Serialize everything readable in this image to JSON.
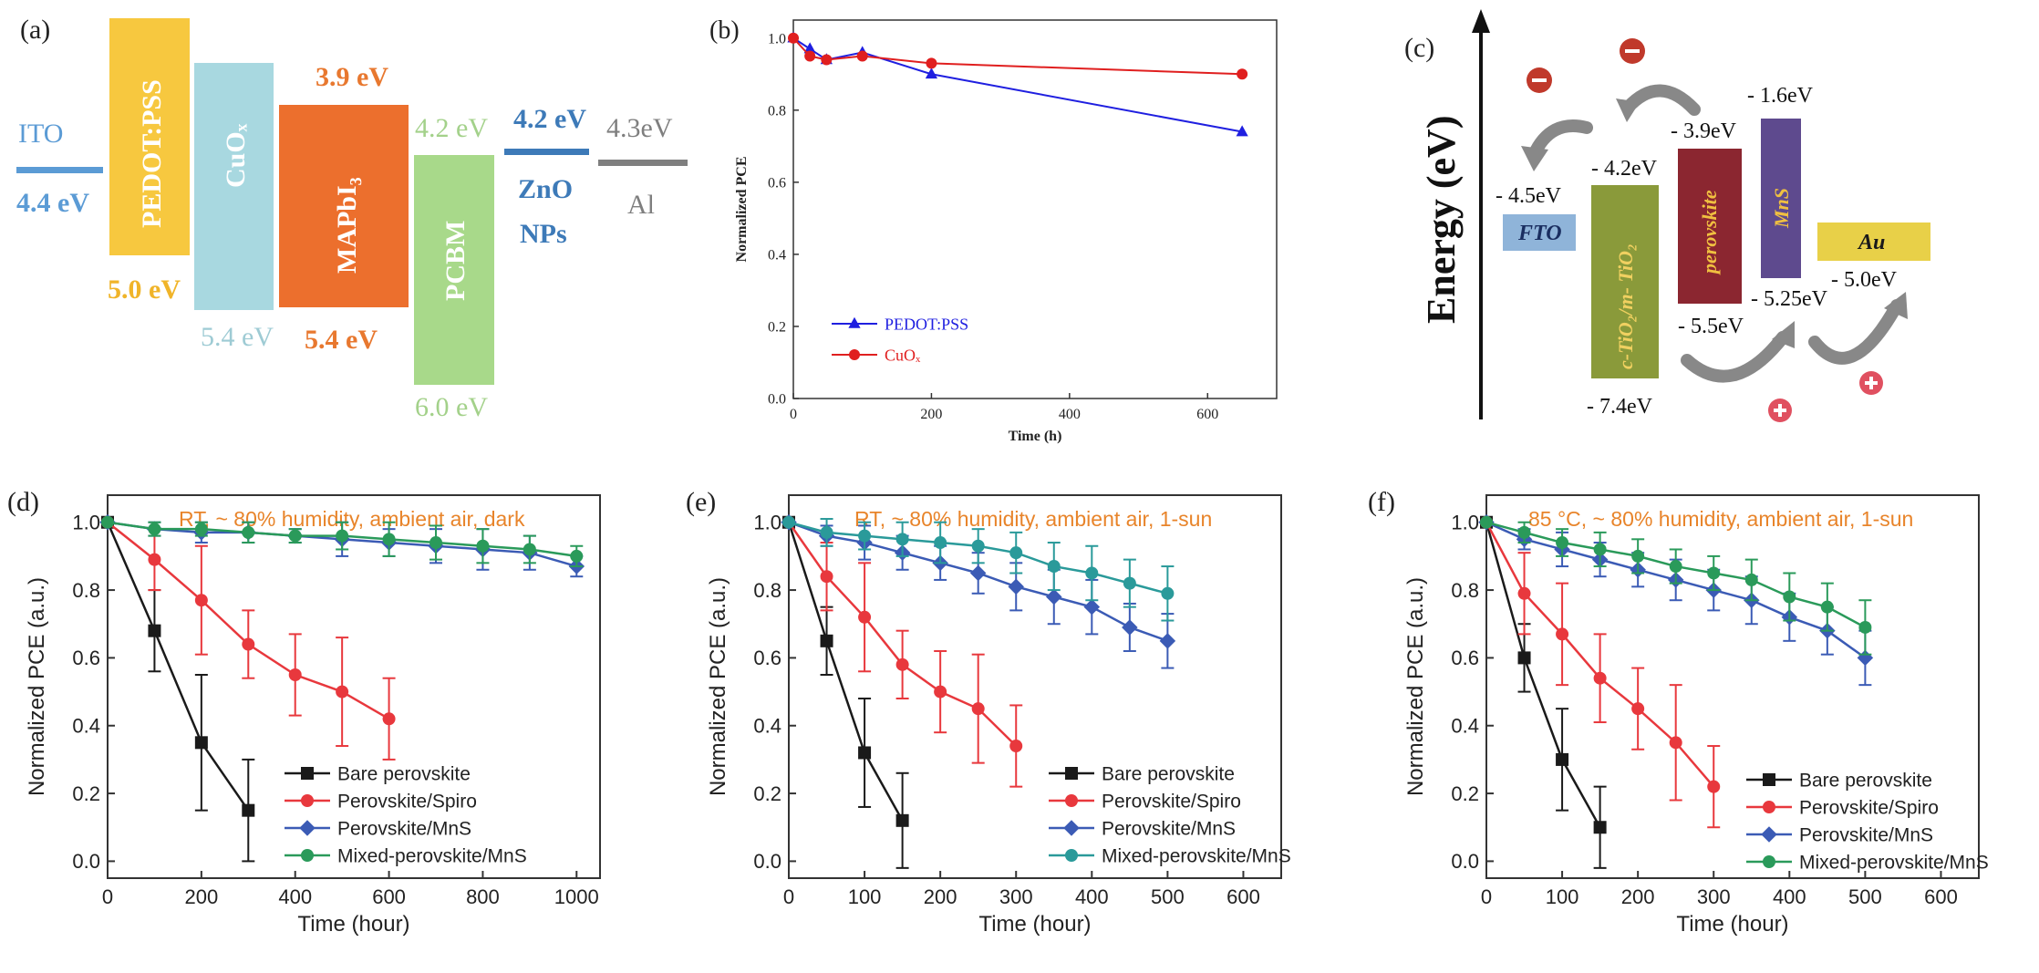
{
  "panel_a": {
    "label": "(a)",
    "layers": [
      {
        "name": "ITO",
        "upper": "",
        "lower": "4.4 eV",
        "color": "#5b9bd5",
        "label_color": "#5b9bd5"
      },
      {
        "name": "PEDOT:PSS",
        "upper": "",
        "lower": "5.0 eV",
        "color": "#f7c83f",
        "label_color": "#f0b429"
      },
      {
        "name": "CuOₓ",
        "upper": "",
        "lower": "5.4 eV",
        "color": "#a8d8e0",
        "label_color": "#9ecbd4"
      },
      {
        "name": "MAPbI₃",
        "upper": "3.9 eV",
        "lower": "5.4 eV",
        "color": "#ec6f2d",
        "label_color": "#e8782f"
      },
      {
        "name": "PCBM",
        "upper": "4.2 eV",
        "lower": "6.0 eV",
        "color": "#a8d98a",
        "label_color": "#a3d18a"
      },
      {
        "name": "ZnO NPs",
        "upper": "4.2 eV",
        "lower": "",
        "color": "#3d7ab8",
        "label_color": "#3d7ab8"
      },
      {
        "name": "Al",
        "upper": "4.3eV",
        "lower": "",
        "color": "#7f7f7f",
        "label_color": "#7f7f7f"
      }
    ]
  },
  "chart_data": [
    {
      "panel": "(b)",
      "type": "line",
      "xlabel": "Time (h)",
      "ylabel": "Normalized PCE",
      "xlim": [
        0,
        700
      ],
      "ylim": [
        0,
        1.05
      ],
      "xticks": [
        "0",
        "200",
        "400",
        "600"
      ],
      "yticks": [
        "0.0",
        "0.2",
        "0.4",
        "0.6",
        "0.8",
        "1.0"
      ],
      "legend_position": "bottom-left",
      "series": [
        {
          "name": "PEDOT:PSS",
          "color": "#1f1fe0",
          "marker": "triangle",
          "x": [
            0,
            24,
            48,
            100,
            200,
            650
          ],
          "y": [
            1.0,
            0.97,
            0.94,
            0.96,
            0.9,
            0.74
          ]
        },
        {
          "name": "CuOₓ",
          "color": "#e01f1f",
          "marker": "circle",
          "x": [
            0,
            24,
            48,
            100,
            200,
            650
          ],
          "y": [
            1.0,
            0.95,
            0.94,
            0.95,
            0.93,
            0.9
          ]
        }
      ]
    },
    {
      "panel": "(d)",
      "type": "line",
      "annotation": "RT, ~ 80% humidity, ambient air, dark",
      "xlabel": "Time (hour)",
      "ylabel": "Normalized PCE (a.u.)",
      "xlim": [
        0,
        1050
      ],
      "ylim": [
        -0.05,
        1.08
      ],
      "xticks": [
        "0",
        "200",
        "400",
        "600",
        "800",
        "1000"
      ],
      "yticks": [
        "0.0",
        "0.2",
        "0.4",
        "0.6",
        "0.8",
        "1.0"
      ],
      "legend_position": "bottom-right",
      "series": [
        {
          "name": "Bare perovskite",
          "color": "#1a1a1a",
          "marker": "square",
          "x": [
            0,
            100,
            200,
            300
          ],
          "y": [
            1.0,
            0.68,
            0.35,
            0.15
          ],
          "err": [
            0,
            0.12,
            0.2,
            0.15
          ]
        },
        {
          "name": "Perovskite/Spiro",
          "color": "#e8383d",
          "marker": "circle",
          "x": [
            0,
            100,
            200,
            300,
            400,
            500,
            600
          ],
          "y": [
            1.0,
            0.89,
            0.77,
            0.64,
            0.55,
            0.5,
            0.42
          ],
          "err": [
            0,
            0.09,
            0.16,
            0.1,
            0.12,
            0.16,
            0.12
          ]
        },
        {
          "name": "Perovskite/MnS",
          "color": "#3b5bb5",
          "marker": "diamond",
          "x": [
            0,
            100,
            200,
            300,
            400,
            500,
            600,
            700,
            800,
            900,
            1000
          ],
          "y": [
            1.0,
            0.98,
            0.97,
            0.97,
            0.96,
            0.95,
            0.94,
            0.93,
            0.92,
            0.91,
            0.87
          ],
          "err": [
            0,
            0.02,
            0.03,
            0.03,
            0.02,
            0.05,
            0.04,
            0.05,
            0.06,
            0.05,
            0.03
          ]
        },
        {
          "name": "Mixed-perovskite/MnS",
          "color": "#2a9a5a",
          "marker": "circle",
          "x": [
            0,
            100,
            200,
            300,
            400,
            500,
            600,
            700,
            800,
            900,
            1000
          ],
          "y": [
            1.0,
            0.98,
            0.98,
            0.97,
            0.96,
            0.96,
            0.95,
            0.94,
            0.93,
            0.92,
            0.9
          ],
          "err": [
            0,
            0.02,
            0.02,
            0.03,
            0.02,
            0.04,
            0.05,
            0.05,
            0.05,
            0.04,
            0.03
          ]
        }
      ]
    },
    {
      "panel": "(e)",
      "type": "line",
      "annotation": "RT, ~ 80% humidity, ambient air, 1-sun",
      "xlabel": "Time (hour)",
      "ylabel": "Normalized PCE (a.u.)",
      "xlim": [
        0,
        650
      ],
      "ylim": [
        -0.05,
        1.08
      ],
      "xticks": [
        "0",
        "100",
        "200",
        "300",
        "400",
        "500",
        "600"
      ],
      "yticks": [
        "0.0",
        "0.2",
        "0.4",
        "0.6",
        "0.8",
        "1.0"
      ],
      "legend_position": "bottom-right",
      "series": [
        {
          "name": "Bare perovskite",
          "color": "#1a1a1a",
          "marker": "square",
          "x": [
            0,
            50,
            100,
            150
          ],
          "y": [
            1.0,
            0.65,
            0.32,
            0.12
          ],
          "err": [
            0,
            0.1,
            0.16,
            0.14
          ]
        },
        {
          "name": "Perovskite/Spiro",
          "color": "#e8383d",
          "marker": "circle",
          "x": [
            0,
            50,
            100,
            150,
            200,
            250,
            300
          ],
          "y": [
            1.0,
            0.84,
            0.72,
            0.58,
            0.5,
            0.45,
            0.34
          ],
          "err": [
            0,
            0.1,
            0.16,
            0.1,
            0.12,
            0.16,
            0.12
          ]
        },
        {
          "name": "Perovskite/MnS",
          "color": "#3b5bb5",
          "marker": "diamond",
          "x": [
            0,
            50,
            100,
            150,
            200,
            250,
            300,
            350,
            400,
            450,
            500
          ],
          "y": [
            1.0,
            0.96,
            0.94,
            0.91,
            0.88,
            0.85,
            0.81,
            0.78,
            0.75,
            0.69,
            0.65
          ],
          "err": [
            0,
            0.03,
            0.05,
            0.05,
            0.05,
            0.06,
            0.07,
            0.08,
            0.08,
            0.07,
            0.08
          ]
        },
        {
          "name": "Mixed-perovskite/MnS",
          "color": "#2a9a9a",
          "marker": "circle",
          "x": [
            0,
            50,
            100,
            150,
            200,
            250,
            300,
            350,
            400,
            450,
            500
          ],
          "y": [
            1.0,
            0.97,
            0.96,
            0.95,
            0.94,
            0.93,
            0.91,
            0.87,
            0.85,
            0.82,
            0.79
          ],
          "err": [
            0,
            0.04,
            0.04,
            0.05,
            0.06,
            0.05,
            0.06,
            0.07,
            0.08,
            0.07,
            0.08
          ]
        }
      ]
    },
    {
      "panel": "(f)",
      "type": "line",
      "annotation": "85 °C, ~ 80% humidity, ambient air, 1-sun",
      "xlabel": "Time (hour)",
      "ylabel": "Normalized PCE (a.u.)",
      "xlim": [
        0,
        650
      ],
      "ylim": [
        -0.05,
        1.08
      ],
      "xticks": [
        "0",
        "100",
        "200",
        "300",
        "400",
        "500",
        "600"
      ],
      "yticks": [
        "0.0",
        "0.2",
        "0.4",
        "0.6",
        "0.8",
        "1.0"
      ],
      "legend_position": "bottom-right",
      "series": [
        {
          "name": "Bare perovskite",
          "color": "#1a1a1a",
          "marker": "square",
          "x": [
            0,
            50,
            100,
            150
          ],
          "y": [
            1.0,
            0.6,
            0.3,
            0.1
          ],
          "err": [
            0,
            0.1,
            0.15,
            0.12
          ]
        },
        {
          "name": "Perovskite/Spiro",
          "color": "#e8383d",
          "marker": "circle",
          "x": [
            0,
            50,
            100,
            150,
            200,
            250,
            300
          ],
          "y": [
            1.0,
            0.79,
            0.67,
            0.54,
            0.45,
            0.35,
            0.22
          ],
          "err": [
            0,
            0.12,
            0.15,
            0.13,
            0.12,
            0.17,
            0.12
          ]
        },
        {
          "name": "Perovskite/MnS",
          "color": "#3b5bb5",
          "marker": "diamond",
          "x": [
            0,
            50,
            100,
            150,
            200,
            250,
            300,
            350,
            400,
            450,
            500
          ],
          "y": [
            1.0,
            0.95,
            0.92,
            0.89,
            0.86,
            0.83,
            0.8,
            0.77,
            0.72,
            0.68,
            0.6
          ],
          "err": [
            0,
            0.03,
            0.05,
            0.05,
            0.05,
            0.06,
            0.06,
            0.07,
            0.07,
            0.07,
            0.08
          ]
        },
        {
          "name": "Mixed-perovskite/MnS",
          "color": "#2a9a5a",
          "marker": "circle",
          "x": [
            0,
            50,
            100,
            150,
            200,
            250,
            300,
            350,
            400,
            450,
            500
          ],
          "y": [
            1.0,
            0.97,
            0.94,
            0.92,
            0.9,
            0.87,
            0.85,
            0.83,
            0.78,
            0.75,
            0.69
          ],
          "err": [
            0,
            0.03,
            0.04,
            0.05,
            0.05,
            0.05,
            0.05,
            0.06,
            0.07,
            0.07,
            0.08
          ]
        }
      ]
    }
  ],
  "panel_c": {
    "label": "(c)",
    "axis_label": "Energy (eV)",
    "layers": [
      {
        "name": "FTO",
        "levels": [
          "- 4.5eV"
        ],
        "color": "#8fb4d9"
      },
      {
        "name": "c-TiO₂/m- TiO₂",
        "levels": [
          "- 4.2eV",
          "- 7.4eV"
        ],
        "color": "#8a9a3a"
      },
      {
        "name": "perovskite",
        "levels": [
          "- 3.9eV",
          "- 5.5eV"
        ],
        "color": "#8b2630"
      },
      {
        "name": "MnS",
        "levels": [
          "- 1.6eV",
          "- 5.25eV"
        ],
        "color": "#5e4a8e"
      },
      {
        "name": "Au",
        "levels": [
          "- 5.0eV"
        ],
        "color": "#e8d048"
      }
    ],
    "electron_symbol": "−",
    "hole_symbol": "+",
    "electron_color": "#c0392b",
    "hole_color": "#e05060"
  }
}
